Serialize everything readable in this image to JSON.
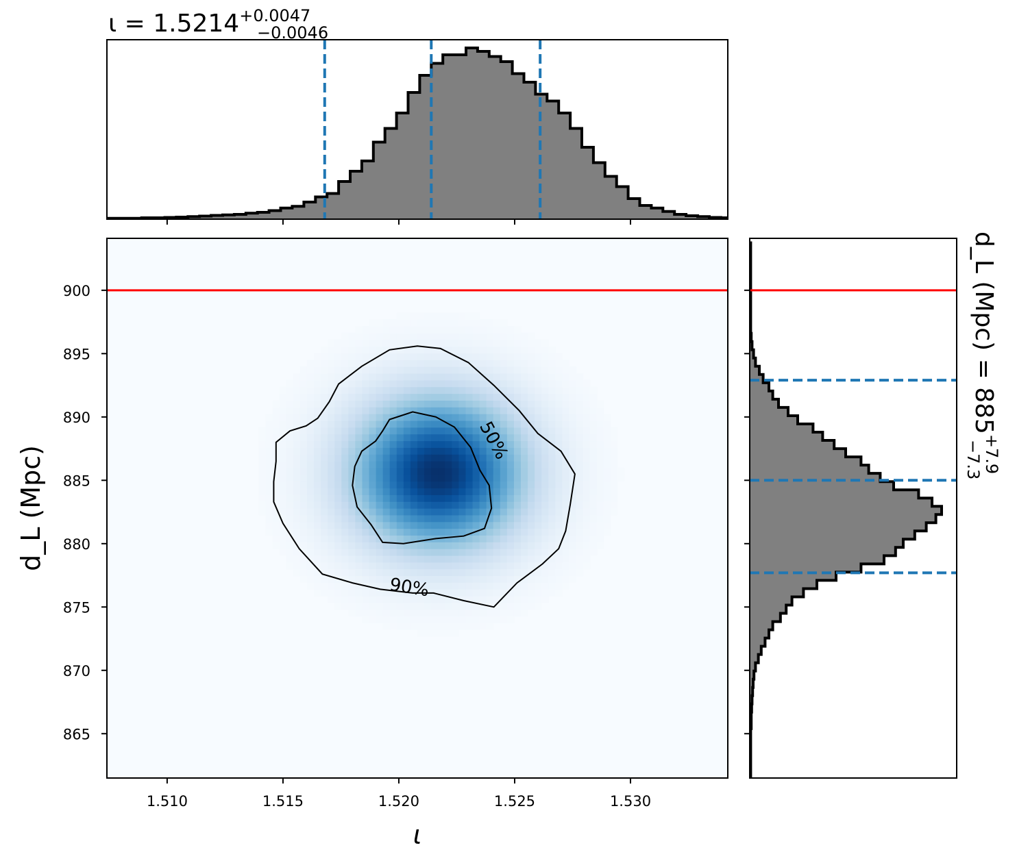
{
  "chart_data": [
    {
      "type": "histogram",
      "panel": "top-marginal",
      "title": {
        "base": "ι = 1.5214",
        "sup": "+0.0047",
        "sub": "−0.0046"
      },
      "xlim": [
        1.5074,
        1.5342
      ],
      "bin_width": 0.0005,
      "x_start": 1.5074,
      "heights": [
        0.005,
        0.005,
        0.005,
        0.008,
        0.008,
        0.01,
        0.012,
        0.015,
        0.018,
        0.022,
        0.025,
        0.028,
        0.035,
        0.04,
        0.05,
        0.065,
        0.075,
        0.1,
        0.13,
        0.15,
        0.22,
        0.28,
        0.34,
        0.45,
        0.53,
        0.62,
        0.74,
        0.84,
        0.91,
        0.96,
        0.96,
        1.0,
        0.98,
        0.95,
        0.92,
        0.85,
        0.8,
        0.73,
        0.69,
        0.62,
        0.53,
        0.42,
        0.33,
        0.25,
        0.19,
        0.12,
        0.08,
        0.065,
        0.045,
        0.028,
        0.02,
        0.015,
        0.01,
        0.008,
        0.005
      ],
      "quantile_lines": [
        1.5168,
        1.5214,
        1.5261
      ],
      "line_color": "#1f77b4",
      "fill_color": "#808080"
    },
    {
      "type": "heatmap",
      "panel": "joint",
      "xlabel": "ι",
      "ylabel": "d_L (Mpc)",
      "xlim": [
        1.5074,
        1.5342
      ],
      "ylim": [
        861.5,
        904.1
      ],
      "xticks": [
        "1.510",
        "1.515",
        "1.520",
        "1.525",
        "1.530"
      ],
      "xtick_values": [
        1.51,
        1.515,
        1.52,
        1.525,
        1.53
      ],
      "yticks": [
        "865",
        "870",
        "875",
        "880",
        "885",
        "890",
        "895",
        "900"
      ],
      "ytick_values": [
        865,
        870,
        875,
        880,
        885,
        890,
        895,
        900
      ],
      "peak": {
        "x": 1.5217,
        "y": 885.6
      },
      "sigma": {
        "x": 0.0026,
        "y": 4.2
      },
      "colormap": "Blues",
      "contours": [
        {
          "label": "50%",
          "points": [
            [
              1.5193,
              888.9
            ],
            [
              1.5196,
              889.8
            ],
            [
              1.5206,
              890.4
            ],
            [
              1.5216,
              890.0
            ],
            [
              1.5224,
              889.2
            ],
            [
              1.5231,
              887.6
            ],
            [
              1.5235,
              885.8
            ],
            [
              1.5239,
              884.6
            ],
            [
              1.524,
              882.8
            ],
            [
              1.5237,
              881.2
            ],
            [
              1.5228,
              880.6
            ],
            [
              1.5216,
              880.4
            ],
            [
              1.5202,
              880.0
            ],
            [
              1.5193,
              880.1
            ],
            [
              1.5188,
              881.5
            ],
            [
              1.5182,
              882.9
            ],
            [
              1.518,
              884.6
            ],
            [
              1.5181,
              886.1
            ],
            [
              1.5184,
              887.3
            ],
            [
              1.519,
              888.1
            ],
            [
              1.5193,
              888.9
            ]
          ]
        },
        {
          "label": "90%",
          "points": [
            [
              1.5165,
              889.9
            ],
            [
              1.517,
              891.2
            ],
            [
              1.5174,
              892.6
            ],
            [
              1.5184,
              894.0
            ],
            [
              1.5196,
              895.3
            ],
            [
              1.5208,
              895.6
            ],
            [
              1.5218,
              895.4
            ],
            [
              1.523,
              894.3
            ],
            [
              1.5241,
              892.5
            ],
            [
              1.5252,
              890.5
            ],
            [
              1.526,
              888.7
            ],
            [
              1.527,
              887.3
            ],
            [
              1.5276,
              885.5
            ],
            [
              1.5274,
              883.1
            ],
            [
              1.5272,
              881.0
            ],
            [
              1.5269,
              879.6
            ],
            [
              1.5262,
              878.4
            ],
            [
              1.5251,
              876.9
            ],
            [
              1.5241,
              875.0
            ],
            [
              1.5228,
              875.5
            ],
            [
              1.5215,
              876.1
            ],
            [
              1.5206,
              876.1
            ],
            [
              1.5192,
              876.4
            ],
            [
              1.518,
              876.9
            ],
            [
              1.5167,
              877.6
            ],
            [
              1.5157,
              879.6
            ],
            [
              1.515,
              881.6
            ],
            [
              1.5146,
              883.3
            ],
            [
              1.5146,
              884.9
            ],
            [
              1.5147,
              886.5
            ],
            [
              1.5147,
              888.0
            ],
            [
              1.5153,
              888.9
            ],
            [
              1.516,
              889.3
            ],
            [
              1.5165,
              889.9
            ]
          ]
        }
      ],
      "truth_line": {
        "y": 900,
        "color": "#ff0000"
      }
    },
    {
      "type": "histogram",
      "panel": "right-marginal",
      "orientation": "horizontal",
      "title": {
        "base": "d_L (Mpc) = 885",
        "sup": "+7.9",
        "sub": "−7.3"
      },
      "ylim": [
        861.5,
        904.1
      ],
      "bin_width": 0.65,
      "y_start": 861.5,
      "heights": [
        0.005,
        0.005,
        0.005,
        0.005,
        0.005,
        0.005,
        0.008,
        0.008,
        0.01,
        0.012,
        0.015,
        0.018,
        0.022,
        0.03,
        0.045,
        0.06,
        0.08,
        0.1,
        0.12,
        0.16,
        0.19,
        0.22,
        0.28,
        0.35,
        0.45,
        0.58,
        0.7,
        0.76,
        0.8,
        0.86,
        0.92,
        0.97,
        1.0,
        0.95,
        0.88,
        0.75,
        0.68,
        0.62,
        0.58,
        0.5,
        0.44,
        0.38,
        0.33,
        0.25,
        0.2,
        0.15,
        0.12,
        0.1,
        0.07,
        0.05,
        0.03,
        0.02,
        0.012,
        0.008,
        0.005,
        0.005,
        0.005,
        0.005,
        0.005,
        0.005,
        0.005,
        0.005,
        0.005,
        0.005,
        0.005
      ],
      "quantile_lines": [
        877.7,
        885.0,
        892.9
      ],
      "truth_line": {
        "y": 900,
        "color": "#ff0000"
      },
      "line_color": "#1f77b4",
      "fill_color": "#808080"
    }
  ]
}
